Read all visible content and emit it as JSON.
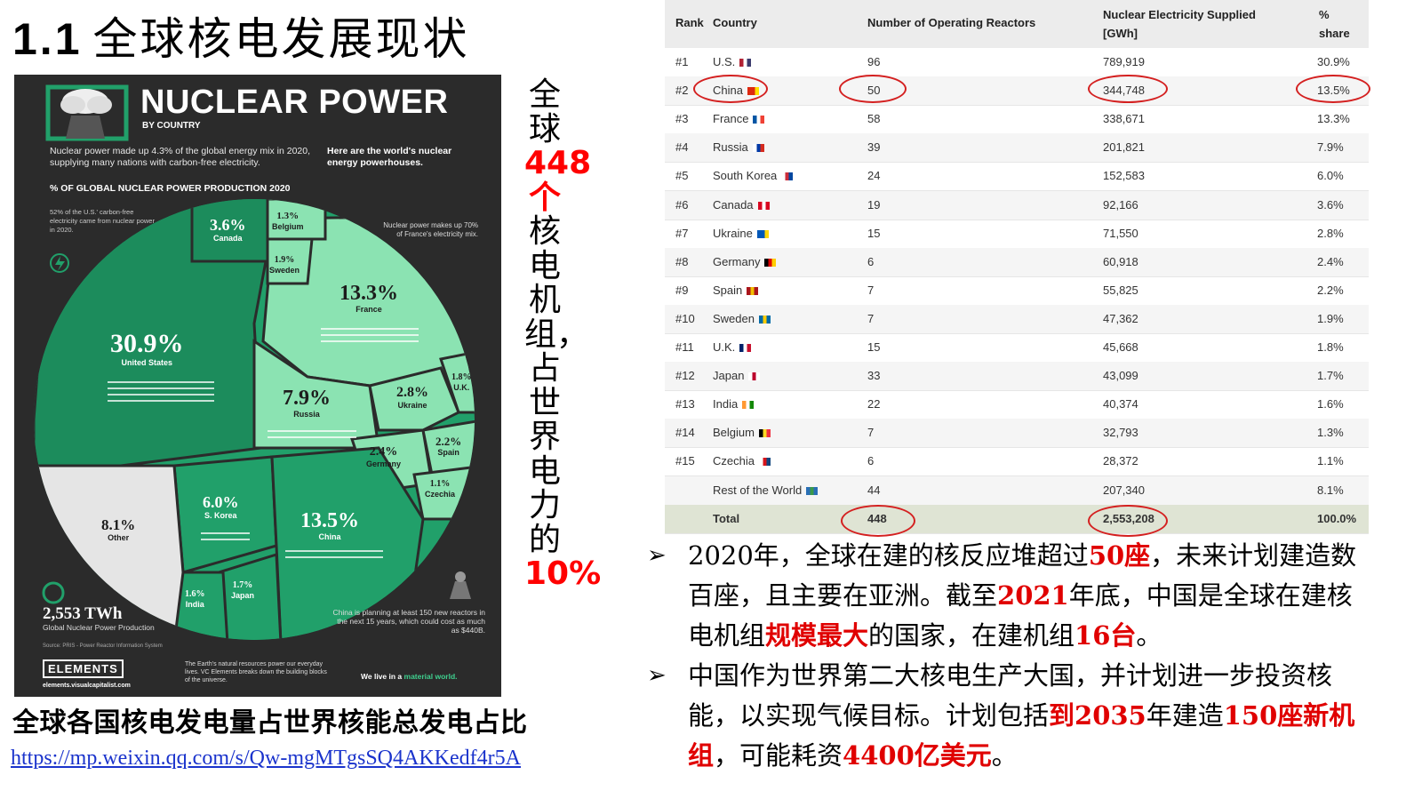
{
  "slide": {
    "title_num": "1.1",
    "title_text": "全球核电发展现状"
  },
  "poster": {
    "title": "NUCLEAR POWER",
    "subtitle": "BY COUNTRY",
    "intro": "Nuclear power made up 4.3% of the global energy mix in 2020, supplying many nations with carbon-free electricity.",
    "intro_right": "Here are the world's nuclear energy powerhouses.",
    "chart_title": "% OF GLOBAL NUCLEAR POWER PRODUCTION 2020",
    "note_us": "52% of the U.S.' carbon-free electricity came from nuclear power in 2020.",
    "note_france": "Nuclear power makes up 70% of France's electricity mix.",
    "total_value": "2,553 TWh",
    "total_label": "Global Nuclear Power Production",
    "source": "Source: PRIS - Power Reactor Information System",
    "china_note": "China is planning at least 150 new reactors in the next 15 years, which could cost as much as $440B.",
    "logo": "ELEMENTS",
    "logo_url": "elements.visualcapitalist.com",
    "earth_note": "The Earth's natural resources power our everyday lives. VC Elements breaks down the building blocks of the universe.",
    "world_text": "We live in a",
    "world_accent": "material world."
  },
  "vertical_caption": {
    "part1": "全球",
    "highlight": "448个",
    "part2": "核电机组，占世界电力的",
    "percent": "10%"
  },
  "caption_below": "全球各国核电发电量占世界核能总发电占比",
  "url": "https://mp.weixin.qq.com/s/Qw-mgMTgsSQ4AKKedf4r5A",
  "table": {
    "headers": {
      "rank": "Rank",
      "country": "Country",
      "reactors": "Number of Operating Reactors",
      "gwh": "Nuclear Electricity Supplied [GWh]",
      "share": "% share"
    },
    "rows": [
      {
        "rank": "#1",
        "country": "U.S.",
        "reactors": "96",
        "gwh": "789,919",
        "share": "30.9%"
      },
      {
        "rank": "#2",
        "country": "China",
        "reactors": "50",
        "gwh": "344,748",
        "share": "13.5%"
      },
      {
        "rank": "#3",
        "country": "France",
        "reactors": "58",
        "gwh": "338,671",
        "share": "13.3%"
      },
      {
        "rank": "#4",
        "country": "Russia",
        "reactors": "39",
        "gwh": "201,821",
        "share": "7.9%"
      },
      {
        "rank": "#5",
        "country": "South Korea",
        "reactors": "24",
        "gwh": "152,583",
        "share": "6.0%"
      },
      {
        "rank": "#6",
        "country": "Canada",
        "reactors": "19",
        "gwh": "92,166",
        "share": "3.6%"
      },
      {
        "rank": "#7",
        "country": "Ukraine",
        "reactors": "15",
        "gwh": "71,550",
        "share": "2.8%"
      },
      {
        "rank": "#8",
        "country": "Germany",
        "reactors": "6",
        "gwh": "60,918",
        "share": "2.4%"
      },
      {
        "rank": "#9",
        "country": "Spain",
        "reactors": "7",
        "gwh": "55,825",
        "share": "2.2%"
      },
      {
        "rank": "#10",
        "country": "Sweden",
        "reactors": "7",
        "gwh": "47,362",
        "share": "1.9%"
      },
      {
        "rank": "#11",
        "country": "U.K.",
        "reactors": "15",
        "gwh": "45,668",
        "share": "1.8%"
      },
      {
        "rank": "#12",
        "country": "Japan",
        "reactors": "33",
        "gwh": "43,099",
        "share": "1.7%"
      },
      {
        "rank": "#13",
        "country": "India",
        "reactors": "22",
        "gwh": "40,374",
        "share": "1.6%"
      },
      {
        "rank": "#14",
        "country": "Belgium",
        "reactors": "7",
        "gwh": "32,793",
        "share": "1.3%"
      },
      {
        "rank": "#15",
        "country": "Czechia",
        "reactors": "6",
        "gwh": "28,372",
        "share": "1.1%"
      },
      {
        "rank": "",
        "country": "Rest of the World",
        "reactors": "44",
        "gwh": "207,340",
        "share": "8.1%"
      }
    ],
    "total": {
      "label": "Total",
      "reactors": "448",
      "gwh": "2,553,208",
      "share": "100.0%"
    }
  },
  "bullets": {
    "b1_p1": "2020年，全球在建的核反应堆超过",
    "b1_r1": "50座",
    "b1_p2": "，未来计划建造数百座，且主要在亚洲。截至",
    "b1_r2": "2021",
    "b1_p3": "年底，中国是全球在建核电机组",
    "b1_r3": "规模最大",
    "b1_p4": "的国家，在建机组",
    "b1_r4": "16台",
    "b1_p5": "。",
    "b2_p1": "中国作为世界第二大核电生产大国，并计划进一步投资核能，以实现气候目标。计划包括",
    "b2_r1": "到2035",
    "b2_p2": "年建造",
    "b2_r2": "150座新机组",
    "b2_p3": "，可能耗资",
    "b2_r3": "4400亿美元",
    "b2_p4": "。"
  },
  "colors": {
    "accent_red": "#e00000",
    "circle_red": "#d42020",
    "poster_bg": "#2b2b2b",
    "green_dark": "#21a06a",
    "green_light": "#8be3b2"
  },
  "chart_data": {
    "type": "voronoi-treemap",
    "title": "% OF GLOBAL NUCLEAR POWER PRODUCTION 2020",
    "categories": [
      "United States",
      "China",
      "France",
      "Russia",
      "S. Korea",
      "Canada",
      "Ukraine",
      "Germany",
      "Spain",
      "U.K.",
      "Japan",
      "India",
      "Belgium",
      "Sweden",
      "Czechia",
      "Other"
    ],
    "values": [
      30.9,
      13.5,
      13.3,
      7.9,
      6.0,
      3.6,
      2.8,
      2.4,
      2.2,
      1.8,
      1.7,
      1.6,
      1.3,
      1.9,
      1.1,
      8.1
    ],
    "labels": [
      "30.9%",
      "13.5%",
      "13.3%",
      "7.9%",
      "6.0%",
      "3.6%",
      "2.8%",
      "2.4%",
      "2.2%",
      "1.8%",
      "1.7%",
      "1.6%",
      "1.3%",
      "1.9%",
      "1.1%",
      "8.1%"
    ]
  }
}
